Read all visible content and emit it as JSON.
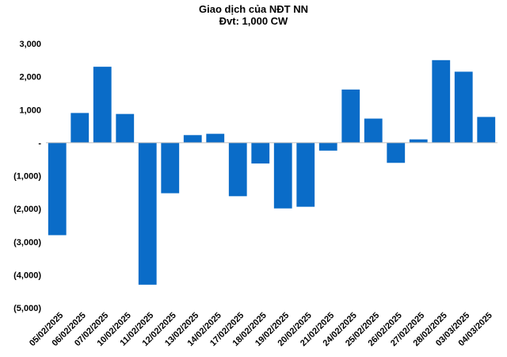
{
  "chart_data": {
    "type": "bar",
    "title": "Giao dịch của NĐT NN",
    "subtitle": "Đvt: 1,000 CW",
    "xlabel": "",
    "ylabel": "",
    "ylim": [
      -5000,
      3000
    ],
    "yticks": [
      3000,
      2000,
      1000,
      0,
      -1000,
      -2000,
      -3000,
      -4000,
      -5000
    ],
    "ytick_labels": [
      "3,000",
      "2,000",
      "1,000",
      "-",
      "(1,000)",
      "(2,000)",
      "(3,000)",
      "(4,000)",
      "(5,000)"
    ],
    "grid": false,
    "bar_color": "#0A6CC8",
    "categories": [
      "05/02/2025",
      "06/02/2025",
      "07/02/2025",
      "10/02/2025",
      "11/02/2025",
      "12/02/2025",
      "13/02/2025",
      "14/02/2025",
      "17/02/2025",
      "18/02/2025",
      "19/02/2025",
      "20/02/2025",
      "21/02/2025",
      "24/02/2025",
      "25/02/2025",
      "26/02/2025",
      "27/02/2025",
      "28/02/2025",
      "03/03/2025",
      "04/03/2025"
    ],
    "values": [
      -2800,
      900,
      2300,
      870,
      -4300,
      -1530,
      230,
      270,
      -1620,
      -630,
      -1990,
      -1940,
      -240,
      1610,
      730,
      -610,
      100,
      2500,
      2150,
      780
    ]
  }
}
